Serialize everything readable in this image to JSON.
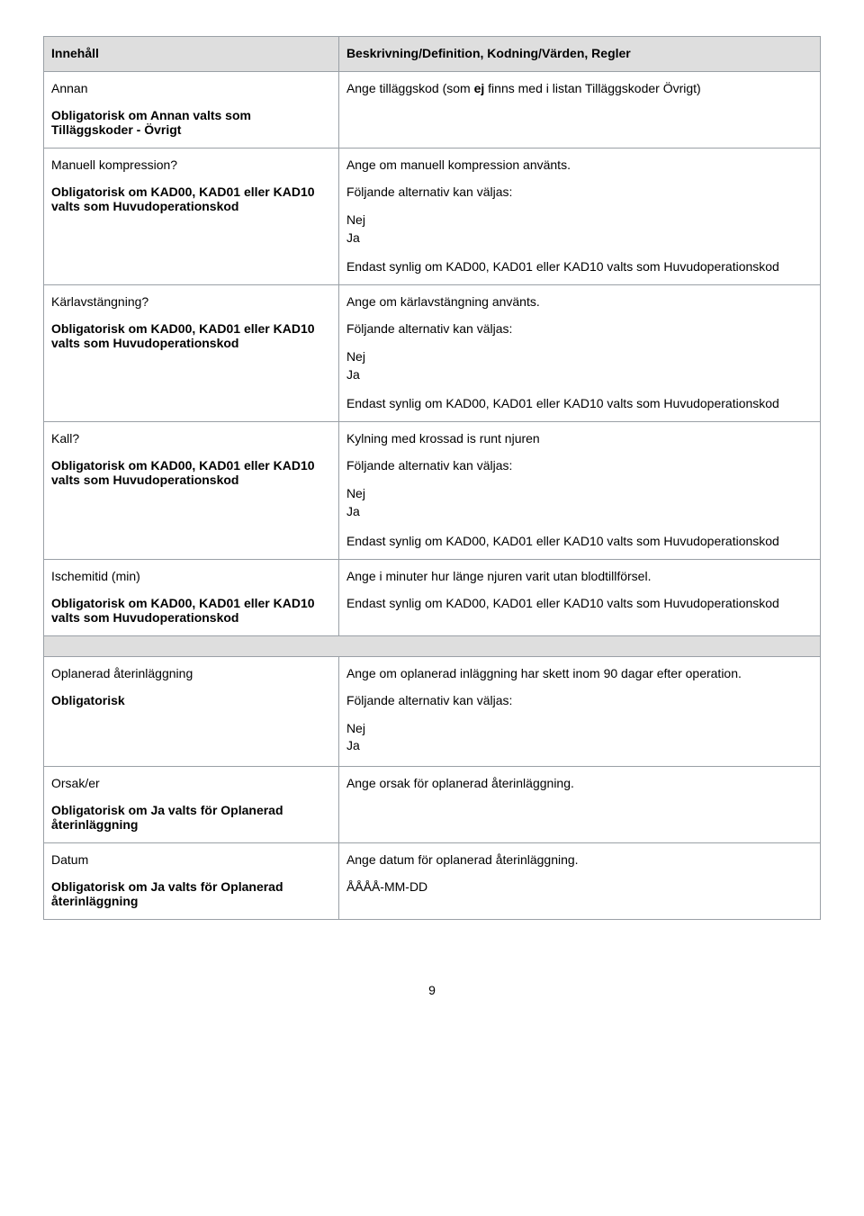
{
  "header": {
    "left": "Innehåll",
    "right": "Beskrivning/Definition, Kodning/Värden, Regler"
  },
  "rows": [
    {
      "left_title": "Annan",
      "left_sub": "Obligatorisk om Annan valts som Tilläggskoder - Övrigt",
      "right_plain_prefix": "Ange tilläggskod (som ",
      "right_bold": "ej",
      "right_plain_suffix": " finns med i listan Tilläggskoder Övrigt)"
    },
    {
      "left_title": "Manuell kompression?",
      "left_sub": "Obligatorisk om KAD00, KAD01 eller KAD10 valts som Huvudoperationskod",
      "desc": "Ange om manuell kompression använts.",
      "alt_label": "Följande alternativ kan väljas:",
      "opts": [
        "Nej",
        "Ja"
      ],
      "visibility": "Endast synlig om KAD00, KAD01 eller KAD10 valts som Huvudoperationskod"
    },
    {
      "left_title": "Kärlavstängning?",
      "left_sub": "Obligatorisk om KAD00, KAD01 eller KAD10 valts som Huvudoperationskod",
      "desc": "Ange om kärlavstängning använts.",
      "alt_label": "Följande alternativ kan väljas:",
      "opts": [
        "Nej",
        "Ja"
      ],
      "visibility": "Endast synlig om KAD00, KAD01 eller KAD10 valts som Huvudoperationskod"
    },
    {
      "left_title": "Kall?",
      "left_sub": "Obligatorisk om KAD00, KAD01 eller KAD10 valts som Huvudoperationskod",
      "desc": "Kylning med krossad is runt njuren",
      "alt_label": "Följande alternativ kan väljas:",
      "opts": [
        "Nej",
        "Ja"
      ],
      "visibility": "Endast synlig om KAD00, KAD01 eller KAD10 valts som Huvudoperationskod"
    },
    {
      "left_title": "Ischemitid (min)",
      "left_sub": "Obligatorisk om KAD00, KAD01 eller KAD10 valts som Huvudoperationskod",
      "desc": "Ange i minuter hur länge njuren varit utan blodtillförsel.",
      "visibility": "Endast synlig om KAD00, KAD01 eller KAD10 valts som Huvudoperationskod"
    }
  ],
  "rows2": [
    {
      "left_title": "Oplanerad återinläggning",
      "left_sub": "Obligatorisk",
      "desc": "Ange om oplanerad inläggning har skett inom 90 dagar efter operation.",
      "alt_label": "Följande alternativ kan väljas:",
      "opts": [
        "Nej",
        "Ja"
      ]
    },
    {
      "left_title": "Orsak/er",
      "left_sub": "Obligatorisk om Ja valts för Oplanerad återinläggning",
      "desc": "Ange orsak för oplanerad återinläggning."
    },
    {
      "left_title": "Datum",
      "left_sub": "Obligatorisk om Ja valts för Oplanerad återinläggning",
      "desc": "Ange datum för oplanerad återinläggning.",
      "extra": "ÅÅÅÅ-MM-DD"
    }
  ],
  "pagenum": "9"
}
